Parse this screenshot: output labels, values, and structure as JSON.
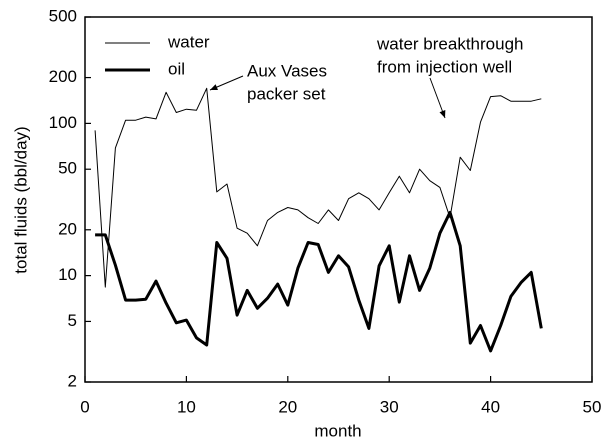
{
  "chart_data": {
    "type": "line",
    "xlabel": "month",
    "ylabel": "total fluids (bbl/day)",
    "x": [
      1,
      2,
      3,
      4,
      5,
      6,
      7,
      8,
      9,
      10,
      11,
      12,
      13,
      14,
      15,
      16,
      17,
      18,
      19,
      20,
      21,
      22,
      23,
      24,
      25,
      26,
      27,
      28,
      29,
      30,
      31,
      32,
      33,
      34,
      35,
      36,
      37,
      38,
      39,
      40,
      41,
      42,
      43,
      44,
      45
    ],
    "series": [
      {
        "name": "water",
        "color": "#000000",
        "width": 1,
        "values": [
          90,
          8.4,
          69,
          105,
          105,
          110,
          107,
          160,
          118,
          124,
          122,
          170,
          35.5,
          40,
          20.5,
          19,
          15.7,
          23,
          26,
          28,
          27,
          24,
          22,
          27,
          23,
          32,
          35,
          32,
          27,
          35,
          45,
          35,
          50,
          42,
          38,
          24,
          60,
          49,
          102,
          150,
          152,
          140,
          140,
          140,
          145
        ]
      },
      {
        "name": "oil",
        "color": "#000000",
        "width": 3,
        "values": [
          18.5,
          18.5,
          11.7,
          6.9,
          6.9,
          7,
          9.2,
          6.6,
          4.9,
          5.1,
          3.9,
          3.5,
          16.5,
          13,
          5.5,
          8,
          6.1,
          7.1,
          8.8,
          6.4,
          11.2,
          16.5,
          16,
          10.5,
          13.5,
          11.4,
          6.9,
          4.5,
          11.6,
          15.7,
          6.7,
          13.5,
          8,
          11.2,
          19,
          26,
          15.7,
          3.6,
          4.7,
          3.2,
          4.7,
          7.3,
          9,
          10.5,
          4.5
        ]
      }
    ],
    "xlim": [
      0,
      50
    ],
    "xticks": [
      0,
      10,
      20,
      30,
      40,
      50
    ],
    "ylim": [
      2,
      500
    ],
    "yticks": [
      2,
      5,
      10,
      20,
      50,
      100,
      200,
      500
    ],
    "ylog": true,
    "legend": "upper left",
    "annotations": [
      {
        "lines": [
          "Aux Vases",
          "packer set"
        ]
      },
      {
        "lines": [
          "water breakthrough",
          "from injection well"
        ]
      }
    ]
  }
}
